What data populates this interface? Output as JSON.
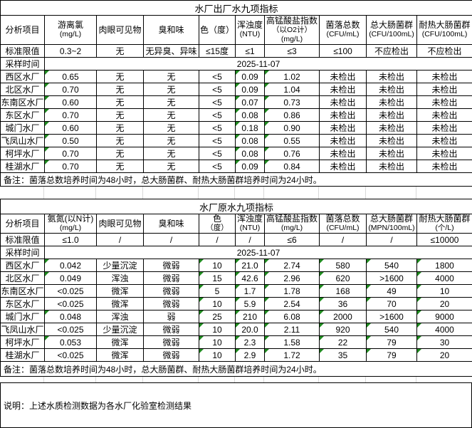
{
  "colors": {
    "border": "#000000",
    "gridline_light": "#d8d8d8",
    "flag_green": "#1f8a1f",
    "background": "#ffffff",
    "text": "#000000"
  },
  "tables": [
    {
      "title": "水厂出厂水九项指标",
      "columns": [
        {
          "key": "analysis-item",
          "lines": [
            "分析项目"
          ]
        },
        {
          "key": "free-chlorine",
          "lines": [
            "游离氯",
            "(mg/L)"
          ]
        },
        {
          "key": "visible-matter",
          "lines": [
            "肉眼可见物"
          ]
        },
        {
          "key": "odor-taste",
          "lines": [
            "臭和味"
          ]
        },
        {
          "key": "color",
          "lines": [
            "色（度）"
          ]
        },
        {
          "key": "turbidity",
          "lines": [
            "浑浊度",
            "(NTU)"
          ]
        },
        {
          "key": "permanganate-index",
          "lines": [
            "高锰酸盐指数",
            "（以O2计）",
            "(mg/L)"
          ]
        },
        {
          "key": "colony-count",
          "lines": [
            "菌落总数",
            "(CFU/mL)"
          ]
        },
        {
          "key": "total-coliform",
          "lines": [
            "总大肠菌群",
            "(CFU/100mL)"
          ]
        },
        {
          "key": "thermotolerant-coliform",
          "lines": [
            "耐热大肠菌群",
            "(CFU/100mL)"
          ]
        }
      ],
      "limit_label": "标准限值",
      "limits": [
        "0.3~2",
        "无",
        "无异臭、异味",
        "≤15度",
        "≤1",
        "≤3",
        "≤100",
        "不应检出",
        "不应检出"
      ],
      "sample_time_label": "采样时间",
      "sample_time": "2025-11-07",
      "rows": [
        {
          "name": "西区水厂",
          "values": [
            "0.65",
            "无",
            "无",
            "<5",
            "0.09",
            "1.02",
            "未检出",
            "未检出",
            "未检出"
          ]
        },
        {
          "name": "北区水厂",
          "values": [
            "0.70",
            "无",
            "无",
            "<5",
            "0.09",
            "1.04",
            "未检出",
            "未检出",
            "未检出"
          ]
        },
        {
          "name": "东南区水厂",
          "values": [
            "0.60",
            "无",
            "无",
            "<5",
            "0.07",
            "0.73",
            "未检出",
            "未检出",
            "未检出"
          ]
        },
        {
          "name": "东区水厂",
          "values": [
            "0.70",
            "无",
            "无",
            "<5",
            "0.08",
            "0.86",
            "未检出",
            "未检出",
            "未检出"
          ]
        },
        {
          "name": "城门水厂",
          "values": [
            "0.60",
            "无",
            "无",
            "<5",
            "0.18",
            "0.90",
            "未检出",
            "未检出",
            "未检出"
          ]
        },
        {
          "name": "飞凤山水厂",
          "values": [
            "0.50",
            "无",
            "无",
            "<5",
            "0.08",
            "0.55",
            "未检出",
            "未检出",
            "未检出"
          ]
        },
        {
          "name": "柯坪水厂",
          "values": [
            "0.70",
            "无",
            "无",
            "<5",
            "0.08",
            "0.76",
            "未检出",
            "未检出",
            "未检出"
          ]
        },
        {
          "name": "桂湖水厂",
          "values": [
            "0.70",
            "无",
            "无",
            "<5",
            "0.09",
            "0.84",
            "未检出",
            "未检出",
            "未检出"
          ]
        }
      ],
      "note": "备注：菌落总数培养时间为48小时，总大肠菌群、耐热大肠菌群培养时间为24小时。"
    },
    {
      "title": "水厂原水九项指标",
      "columns": [
        {
          "key": "analysis-item",
          "lines": [
            "分析项目"
          ]
        },
        {
          "key": "ammonia-nitrogen",
          "lines": [
            "氨氮(以N计)",
            "(mg/L)"
          ]
        },
        {
          "key": "visible-matter",
          "lines": [
            "肉眼可见物"
          ]
        },
        {
          "key": "odor-taste",
          "lines": [
            "臭和味"
          ]
        },
        {
          "key": "color",
          "lines": [
            "色",
            "（度）"
          ]
        },
        {
          "key": "turbidity",
          "lines": [
            "浑浊度",
            "(NTU)"
          ]
        },
        {
          "key": "permanganate-index",
          "lines": [
            "高锰酸盐指数",
            "(mg/L)"
          ]
        },
        {
          "key": "colony-count",
          "lines": [
            "菌落总数",
            "(CFU/mL)"
          ]
        },
        {
          "key": "total-coliform",
          "lines": [
            "总大肠菌群",
            "(MPN/100mL)"
          ]
        },
        {
          "key": "thermotolerant-coliform",
          "lines": [
            "耐热大肠菌群",
            "(个/L)"
          ]
        }
      ],
      "limit_label": "标准限值",
      "limits": [
        "≤1.0",
        "/",
        "/",
        "/",
        "/",
        "≤6",
        "/",
        "/",
        "≤10000"
      ],
      "sample_time_label": "采样时间",
      "sample_time": "2025-11-07",
      "rows": [
        {
          "name": "西区水厂",
          "values": [
            "0.042",
            "少量沉淀",
            "微弱",
            "10",
            "21.0",
            "2.74",
            "580",
            "540",
            "1800"
          ]
        },
        {
          "name": "北区水厂",
          "values": [
            "0.049",
            "浑浊",
            "微弱",
            "15",
            "42.6",
            "2.96",
            "620",
            ">1600",
            "4000"
          ]
        },
        {
          "name": "东南区水厂",
          "values": [
            "<0.025",
            "微浑",
            "微弱",
            "5",
            "1.7",
            "1.78",
            "168",
            "49",
            "10"
          ]
        },
        {
          "name": "东区水厂",
          "values": [
            "<0.025",
            "微浑",
            "微弱",
            "10",
            "5.9",
            "2.54",
            "36",
            "70",
            "20"
          ]
        },
        {
          "name": "城门水厂",
          "values": [
            "0.048",
            "浑浊",
            "弱",
            "25",
            "210",
            "6.08",
            "2000",
            ">1600",
            "9000"
          ]
        },
        {
          "name": "飞凤山水厂",
          "values": [
            "<0.025",
            "少量沉淀",
            "微弱",
            "10",
            "20.0",
            "2.11",
            "920",
            "540",
            "4000"
          ]
        },
        {
          "name": "柯坪水厂",
          "values": [
            "0.053",
            "微浑",
            "微弱",
            "10",
            "2.3",
            "1.58",
            "22",
            "79",
            "30"
          ]
        },
        {
          "name": "桂湖水厂",
          "values": [
            "<0.025",
            "微浑",
            "微弱",
            "10",
            "2.9",
            "1.72",
            "35",
            "79",
            "20"
          ]
        }
      ],
      "note": "备注：菌落总数培养时间为48小时，总大肠菌群、耐热大肠菌群培养时间为24小时。"
    }
  ],
  "footer": {
    "note": "说明：上述水质检测数据为各水厂化验室检测结果"
  }
}
